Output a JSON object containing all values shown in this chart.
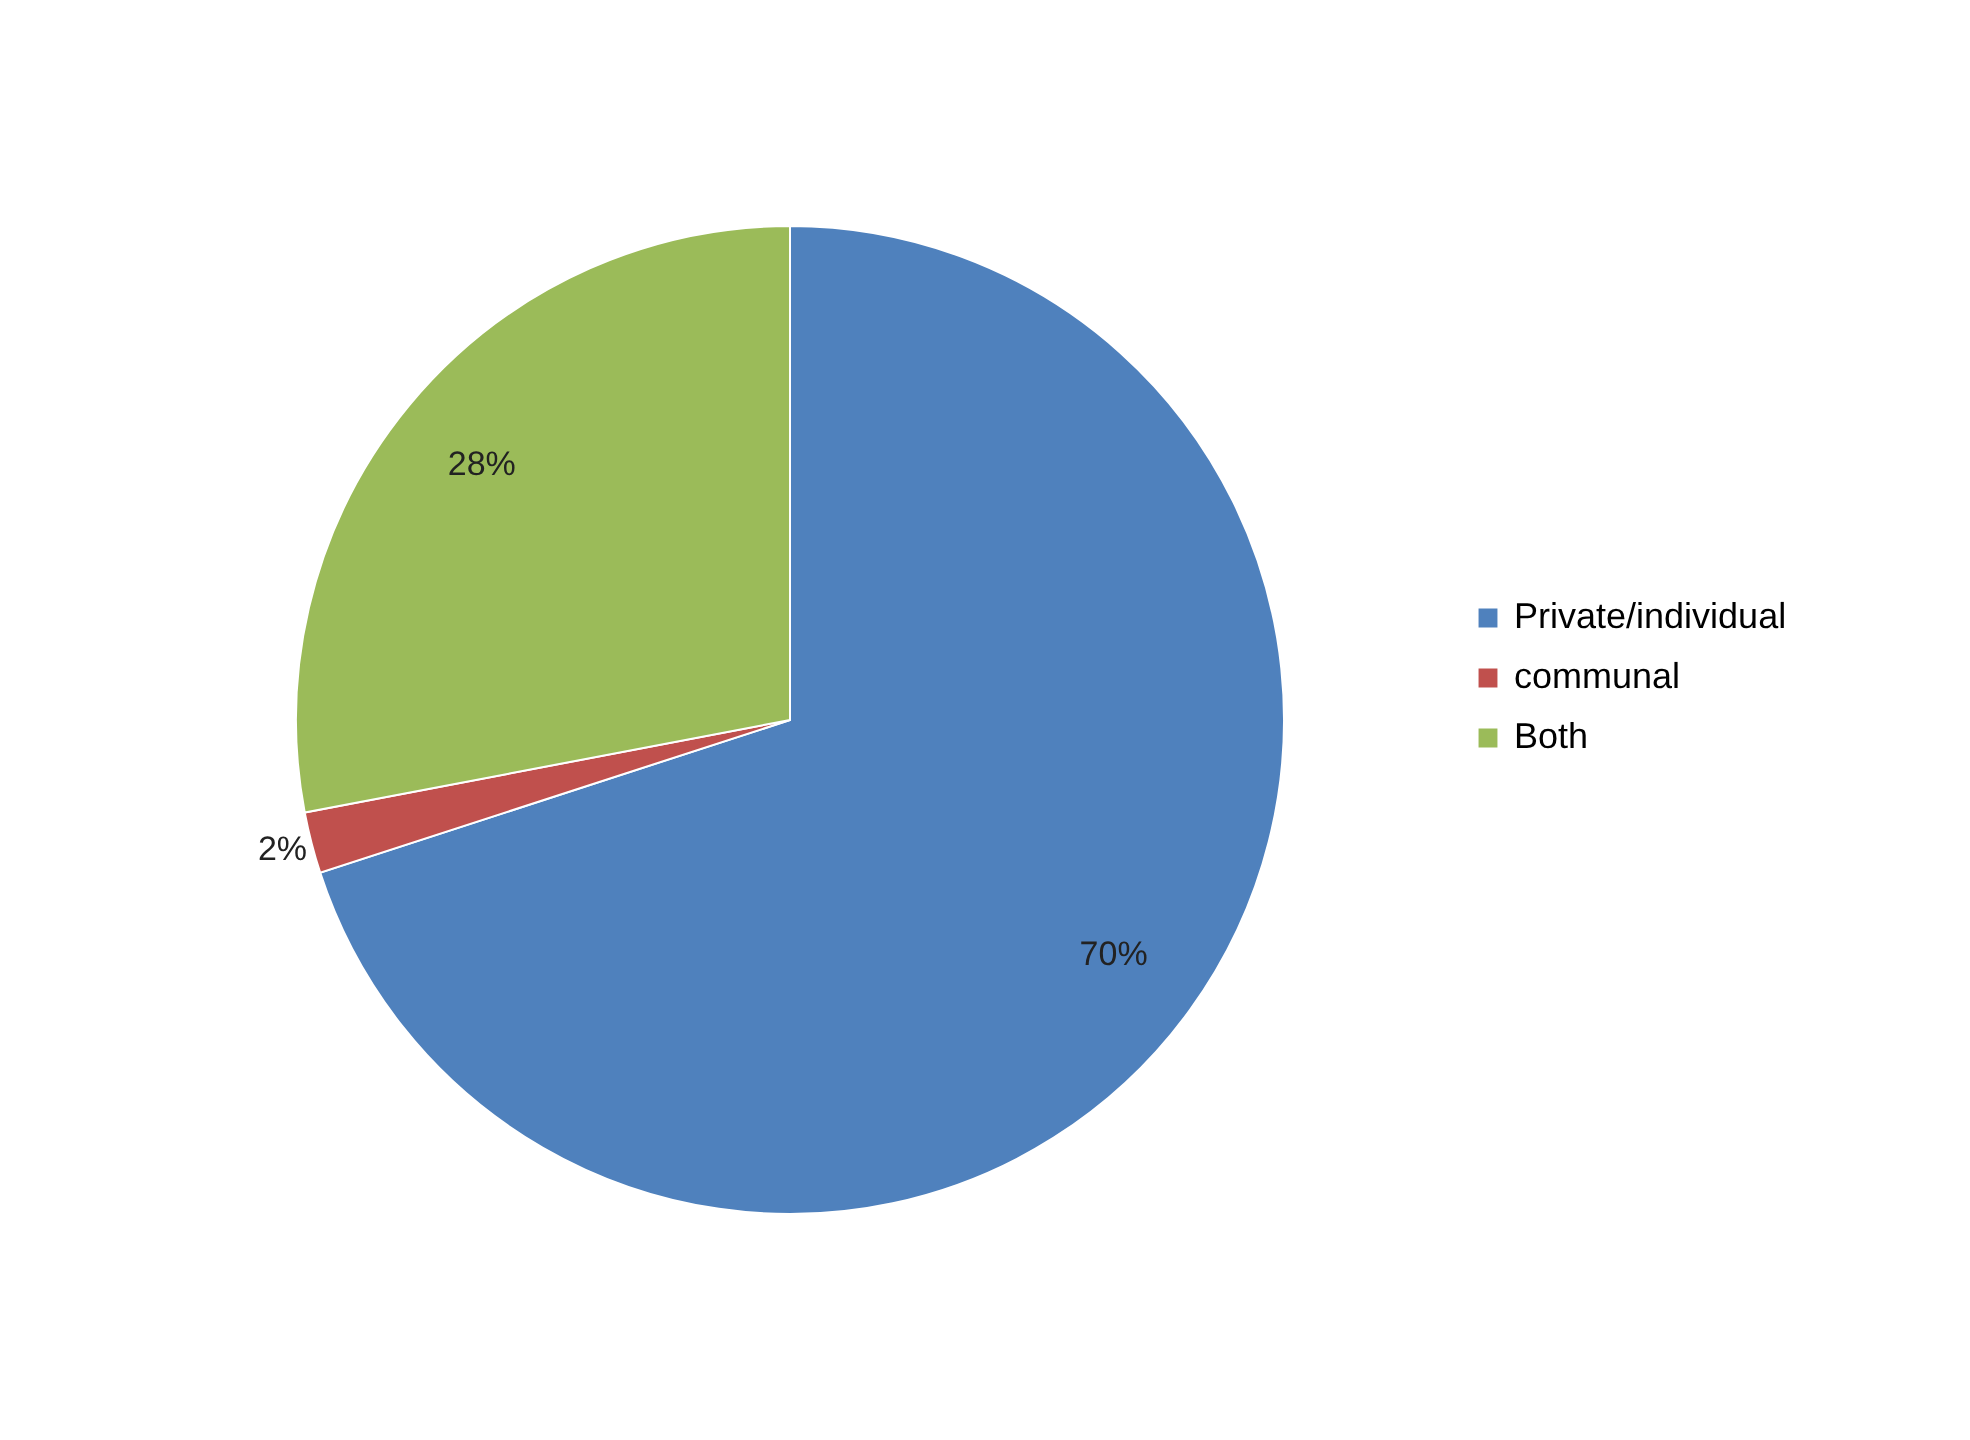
{
  "chart_data": {
    "type": "pie",
    "categories": [
      "Private/individual",
      "communal",
      "Both"
    ],
    "values": [
      70,
      2,
      28
    ],
    "colors": [
      "#4f81bd",
      "#c0504d",
      "#9bbb59"
    ],
    "value_labels": [
      "70%",
      "2%",
      "28%"
    ],
    "legend": "right"
  }
}
